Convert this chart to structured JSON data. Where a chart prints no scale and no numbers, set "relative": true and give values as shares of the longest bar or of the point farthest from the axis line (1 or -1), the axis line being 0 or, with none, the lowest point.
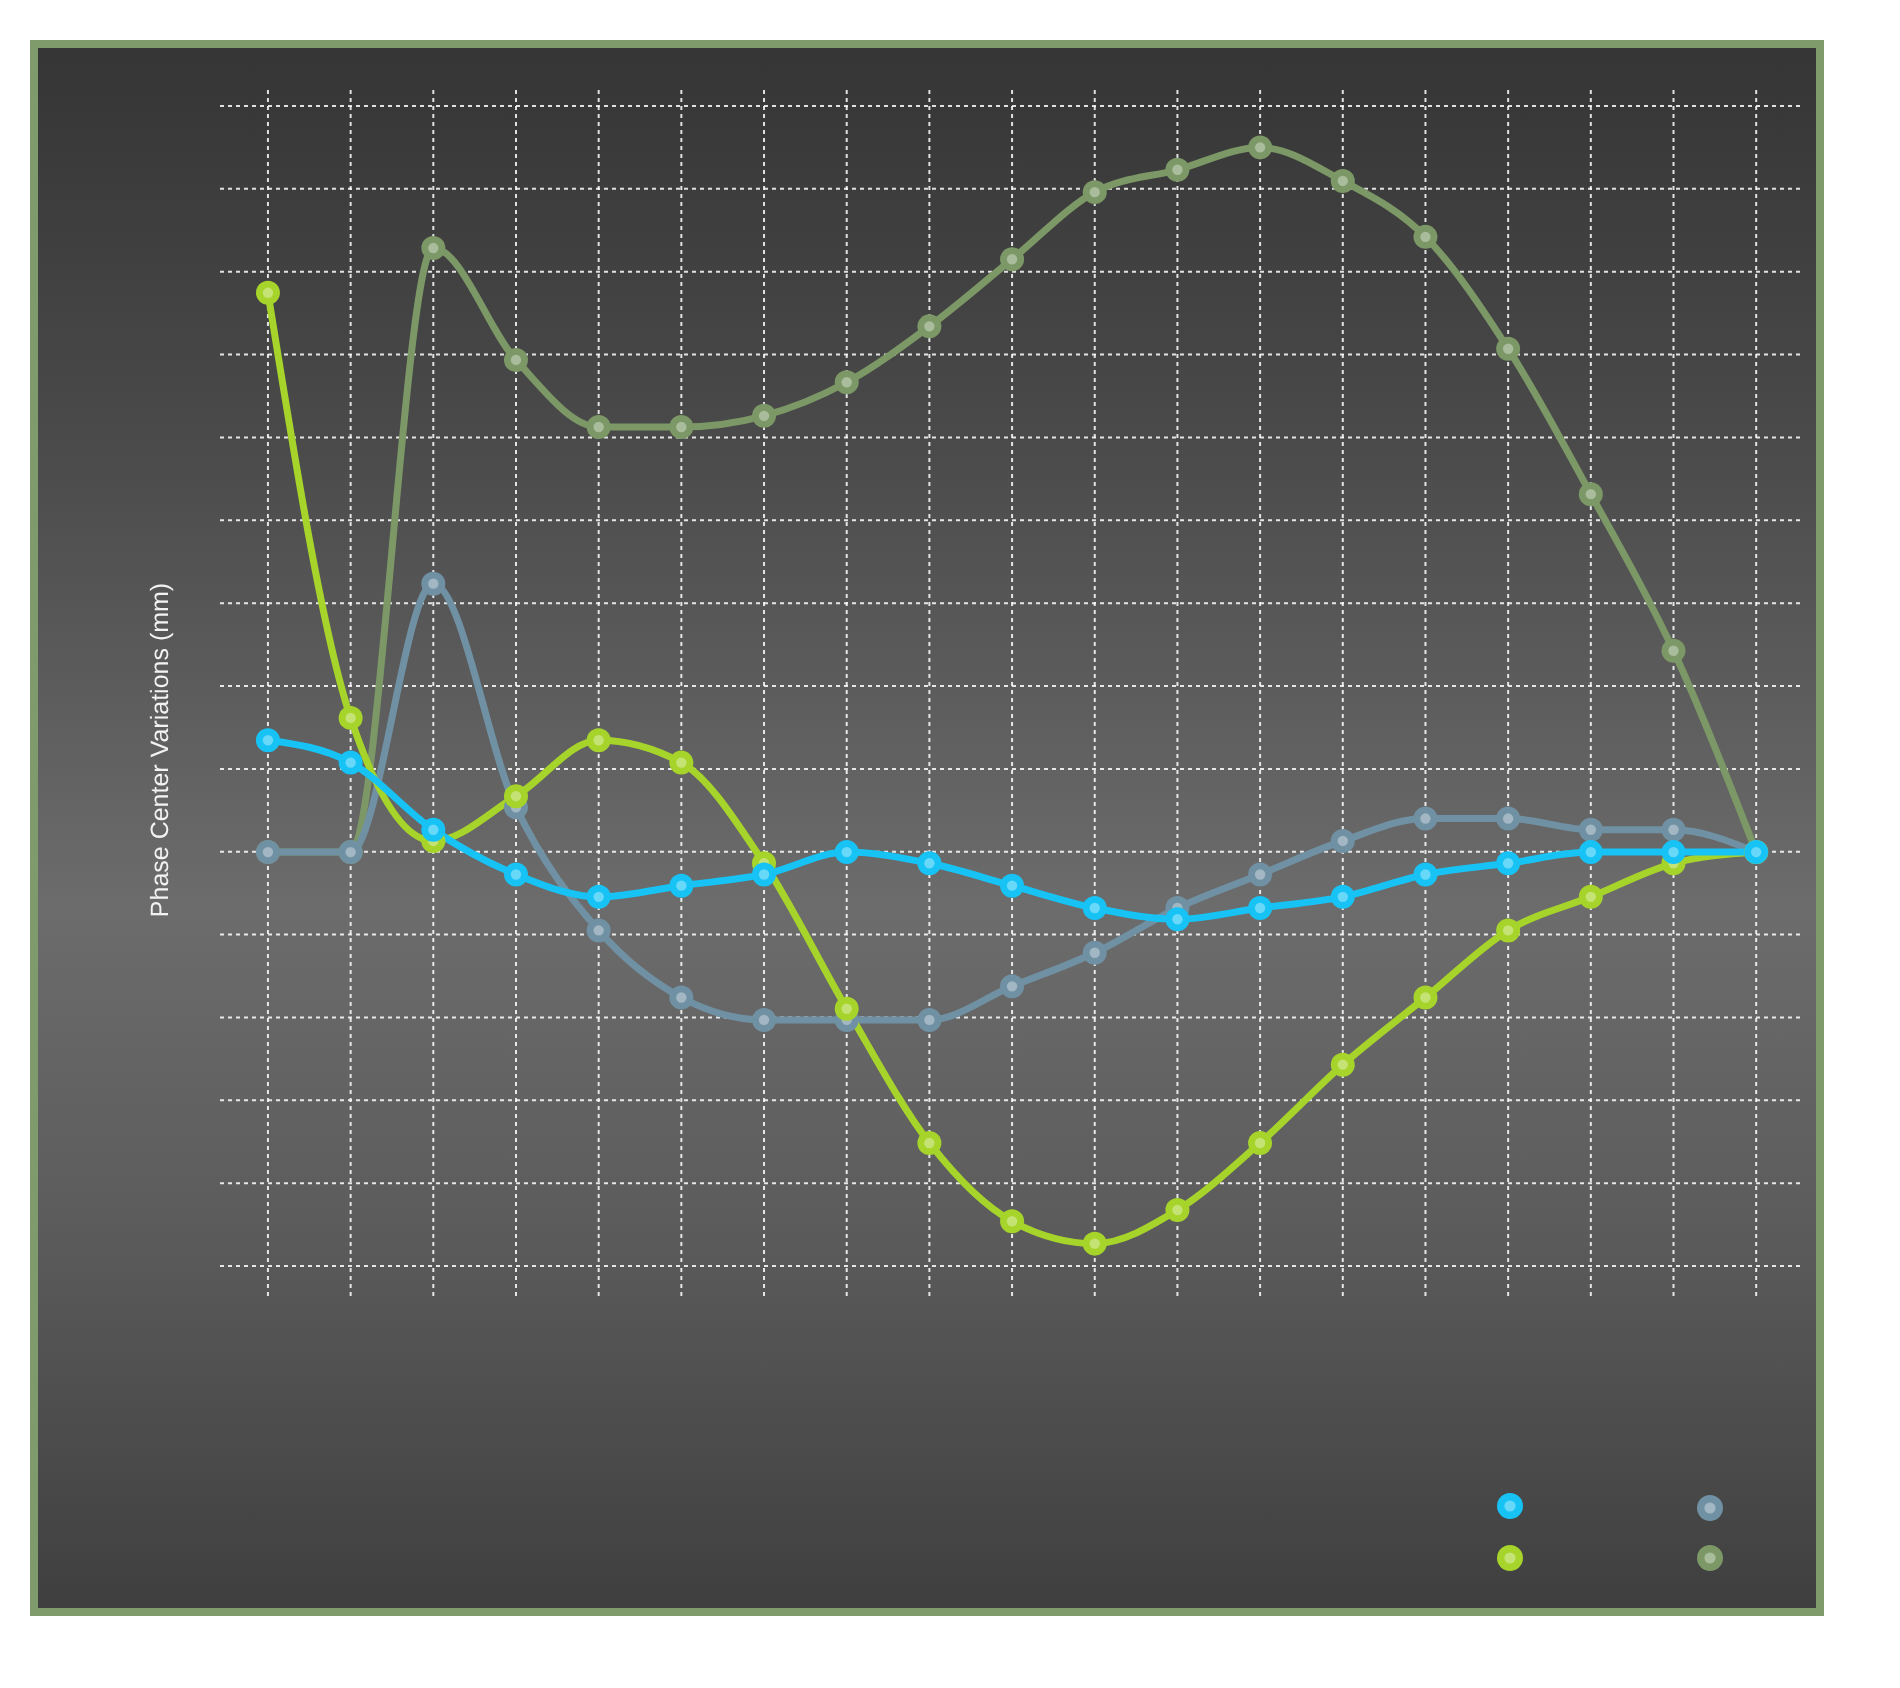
{
  "chart_data": {
    "type": "line",
    "ylabel": "Phase Center Variations (mm)",
    "relative": true,
    "categories": [
      null,
      null,
      null,
      null,
      null,
      null,
      null,
      null,
      null,
      null,
      null,
      null,
      null,
      null,
      null,
      null,
      null,
      null,
      null
    ],
    "series": [
      {
        "color": "#17c3f5",
        "values": [
          0.47,
          0.45,
          0.39,
          0.35,
          0.33,
          0.34,
          0.35,
          0.37,
          0.36,
          0.34,
          0.32,
          0.31,
          0.32,
          0.33,
          0.35,
          0.36,
          0.37,
          0.37,
          0.37
        ]
      },
      {
        "color": "#a6d42a",
        "values": [
          0.87,
          0.49,
          0.38,
          0.42,
          0.47,
          0.45,
          0.36,
          0.23,
          0.11,
          0.04,
          0.02,
          0.05,
          0.11,
          0.18,
          0.24,
          0.3,
          0.33,
          0.36,
          0.37
        ]
      },
      {
        "color": "#7091a3",
        "values": [
          0.37,
          0.37,
          0.61,
          0.41,
          0.3,
          0.24,
          0.22,
          0.22,
          0.22,
          0.25,
          0.28,
          0.32,
          0.35,
          0.38,
          0.4,
          0.4,
          0.39,
          0.39,
          0.37
        ]
      },
      {
        "color": "#7c9866",
        "values": [
          0.37,
          0.37,
          0.91,
          0.81,
          0.75,
          0.75,
          0.76,
          0.79,
          0.84,
          0.9,
          0.96,
          0.98,
          1.0,
          0.97,
          0.92,
          0.82,
          0.69,
          0.55,
          0.37
        ]
      }
    ],
    "grid": true,
    "marker": "circle",
    "line_style": "solid"
  }
}
